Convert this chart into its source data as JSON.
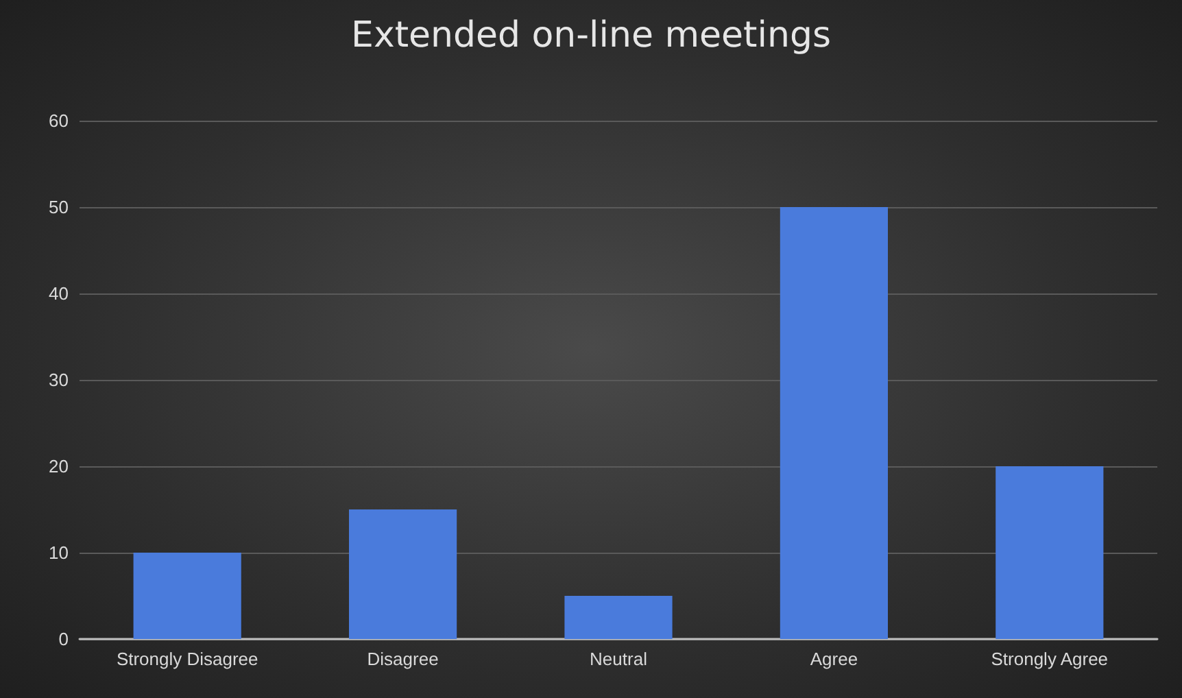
{
  "chart_data": {
    "type": "bar",
    "title": "Extended on-line meetings",
    "categories": [
      "Strongly Disagree",
      "Disagree",
      "Neutral",
      "Agree",
      "Strongly Agree"
    ],
    "values": [
      10,
      15,
      5,
      50,
      20
    ],
    "color": "#4a7bdc",
    "ylim": [
      0,
      60
    ],
    "yticks": [
      0,
      10,
      20,
      30,
      40,
      50,
      60
    ],
    "grid": "y"
  }
}
